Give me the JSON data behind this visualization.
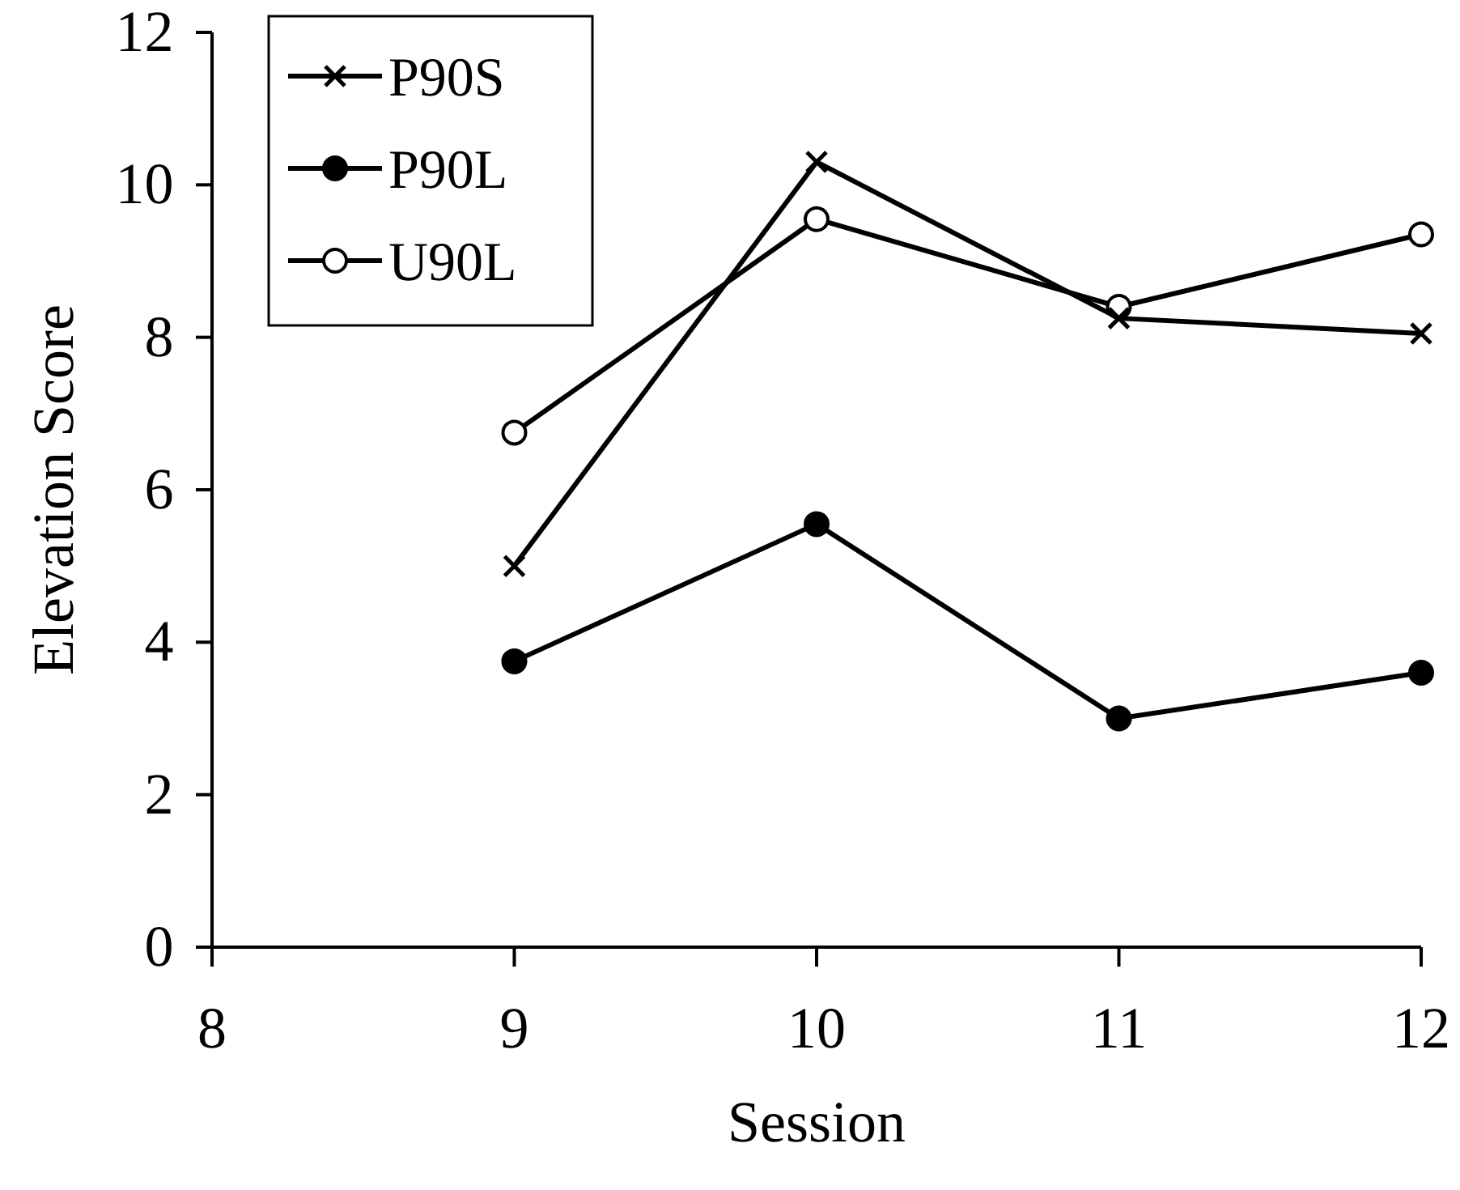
{
  "chart_data": {
    "type": "line",
    "xlabel": "Session",
    "ylabel": "Elevation Score",
    "xlim": [
      8,
      12
    ],
    "xticks": [
      8,
      9,
      10,
      11,
      12
    ],
    "ylim": [
      0,
      12
    ],
    "yticks": [
      0,
      2,
      4,
      6,
      8,
      10,
      12
    ],
    "x": [
      9,
      10,
      11,
      12
    ],
    "grid": false,
    "legend": "top left",
    "line_style": "solid",
    "series": [
      {
        "name": "P90S",
        "color": "#000000",
        "marker": "cross",
        "values": [
          5.0,
          10.3,
          8.25,
          8.05
        ]
      },
      {
        "name": "P90L",
        "color": "#000000",
        "marker": "circle",
        "values": [
          3.75,
          5.55,
          3.0,
          3.6
        ]
      },
      {
        "name": "U90L",
        "color": "#000000",
        "marker": "circle",
        "values": [
          6.75,
          9.55,
          8.4,
          9.35
        ]
      }
    ]
  }
}
